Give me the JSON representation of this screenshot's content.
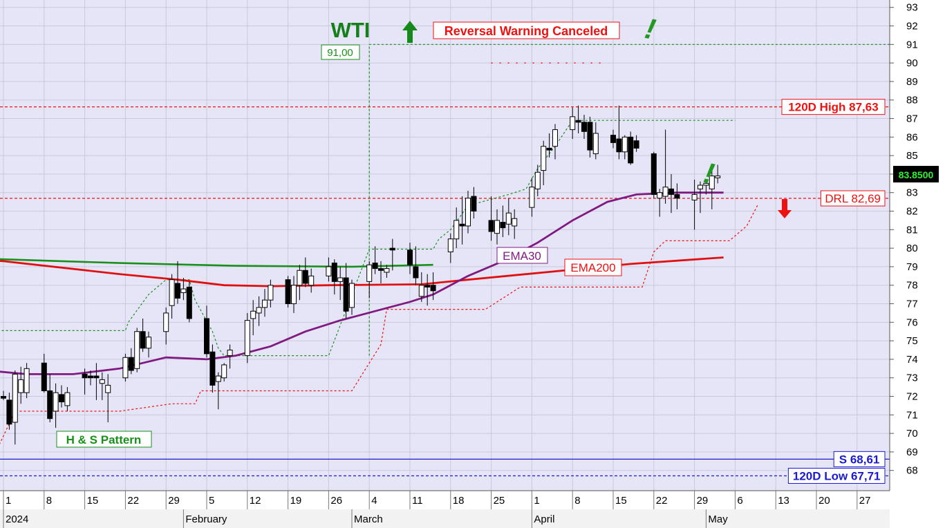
{
  "chart_data": {
    "type": "candlestick",
    "title": "WTI",
    "ylim": [
      67.2,
      93.4
    ],
    "y_ticks": [
      68,
      69,
      70,
      71,
      72,
      73,
      74,
      75,
      76,
      77,
      78,
      79,
      80,
      81,
      82,
      83,
      84,
      85,
      86,
      87,
      88,
      89,
      90,
      91,
      92,
      93
    ],
    "x_ticks": [
      {
        "label": "1",
        "day": 0
      },
      {
        "label": "8",
        "day": 7
      },
      {
        "label": "15",
        "day": 14
      },
      {
        "label": "22",
        "day": 21
      },
      {
        "label": "29",
        "day": 28
      },
      {
        "label": "5",
        "day": 35
      },
      {
        "label": "12",
        "day": 42
      },
      {
        "label": "19",
        "day": 49
      },
      {
        "label": "26",
        "day": 56
      },
      {
        "label": "4",
        "day": 63
      },
      {
        "label": "11",
        "day": 70
      },
      {
        "label": "18",
        "day": 77
      },
      {
        "label": "25",
        "day": 84
      },
      {
        "label": "1",
        "day": 91
      },
      {
        "label": "8",
        "day": 98
      },
      {
        "label": "15",
        "day": 105
      },
      {
        "label": "22",
        "day": 112
      },
      {
        "label": "29",
        "day": 119
      },
      {
        "label": "6",
        "day": 126
      },
      {
        "label": "13",
        "day": 133
      },
      {
        "label": "20",
        "day": 140
      },
      {
        "label": "27",
        "day": 147
      }
    ],
    "months": [
      {
        "label": "2024",
        "day": 0
      },
      {
        "label": "February",
        "day": 31
      },
      {
        "label": "March",
        "day": 60
      },
      {
        "label": "April",
        "day": 91
      },
      {
        "label": "May",
        "day": 121
      }
    ],
    "current_price": "83.8500",
    "candles": [
      [
        0,
        72,
        72.3,
        71.8,
        71.9
      ],
      [
        1,
        71.8,
        72.2,
        70.2,
        70.5
      ],
      [
        2,
        70.6,
        73.4,
        69.4,
        73.2
      ],
      [
        3,
        72.2,
        73.6,
        71.6,
        72.9
      ],
      [
        4,
        72.2,
        73.8,
        71.9,
        73.5
      ],
      [
        7,
        73.8,
        74.3,
        72.2,
        72.3
      ],
      [
        8,
        72.3,
        73.2,
        70.6,
        70.8
      ],
      [
        9,
        71.2,
        72.7,
        70.3,
        72.2
      ],
      [
        10,
        72.1,
        72.6,
        71.4,
        71.7
      ],
      [
        11,
        71.5,
        72.5,
        71.2,
        72.2
      ],
      [
        14,
        73.2,
        73.5,
        72.1,
        73
      ],
      [
        15,
        73.1,
        73.4,
        72.6,
        73
      ],
      [
        16,
        73.1,
        73.8,
        71.8,
        73
      ],
      [
        17,
        72.7,
        73.3,
        71.8,
        72.9
      ],
      [
        18,
        72.2,
        73.2,
        70.6,
        72.6
      ],
      [
        21,
        73,
        74.3,
        72.8,
        74.1
      ],
      [
        22,
        74.1,
        74.6,
        73.2,
        73.4
      ],
      [
        23,
        73.5,
        75.7,
        73.3,
        75.5
      ],
      [
        24,
        75.5,
        76.2,
        74.4,
        74.6
      ],
      [
        25,
        74.6,
        75.5,
        74.1,
        75.2
      ],
      [
        28,
        75.5,
        76.8,
        74.8,
        76.5
      ],
      [
        29,
        76.9,
        78.6,
        76.2,
        78.3
      ],
      [
        30,
        78.1,
        79.3,
        77,
        77.3
      ],
      [
        31,
        77.6,
        78.4,
        77.2,
        77.8
      ],
      [
        32,
        77.9,
        78.2,
        76,
        76.2
      ],
      [
        35,
        76.2,
        76.9,
        74.1,
        74.3
      ],
      [
        36,
        74.4,
        74.8,
        72.2,
        72.6
      ],
      [
        37,
        72.8,
        73.3,
        71.3,
        73.1
      ],
      [
        38,
        73,
        73.8,
        72.8,
        73.7
      ],
      [
        39,
        74.2,
        74.8,
        73.5,
        74.5
      ],
      [
        42,
        74.2,
        76.5,
        73.8,
        76.1
      ],
      [
        43,
        76.2,
        77.2,
        75.3,
        76.6
      ],
      [
        44,
        76.5,
        77.4,
        75.8,
        76.8
      ],
      [
        45,
        76.8,
        77.8,
        76.3,
        77.2
      ],
      [
        46,
        77.2,
        78.3,
        76.8,
        78
      ],
      [
        49,
        78.3,
        78.5,
        76.8,
        77
      ],
      [
        50,
        77,
        78.5,
        76.5,
        78
      ],
      [
        51,
        78,
        79.1,
        77.2,
        78.8
      ],
      [
        52,
        78.8,
        79.5,
        77.9,
        78.1
      ],
      [
        53,
        78,
        78.9,
        77.6,
        78.5
      ],
      [
        56,
        78.5,
        79.5,
        78.2,
        79
      ],
      [
        57,
        79.2,
        79.4,
        77.5,
        78.2
      ],
      [
        58,
        78.2,
        79,
        77.2,
        78.4
      ],
      [
        59,
        78.4,
        79.2,
        76.2,
        76.6
      ],
      [
        60,
        76.8,
        78.3,
        76.4,
        78.1
      ],
      [
        63,
        78.2,
        79.3,
        77.3,
        79.1
      ],
      [
        64,
        79.2,
        80.1,
        78.6,
        78.9
      ],
      [
        65,
        78.9,
        79.3,
        78.1,
        78.8
      ],
      [
        66,
        78.7,
        79.1,
        78.4,
        78.9
      ],
      [
        67,
        80,
        80.5,
        78.8,
        79.9
      ],
      [
        70,
        79.9,
        80.3,
        78.6,
        79.1
      ],
      [
        71,
        79,
        80.1,
        78,
        78.4
      ],
      [
        72,
        77.4,
        78.7,
        77.1,
        78
      ],
      [
        73,
        78,
        78.6,
        76.9,
        77.9
      ],
      [
        74,
        78,
        78.7,
        77.2,
        77.7
      ],
      [
        77,
        79.8,
        80.8,
        79.2,
        80.5
      ],
      [
        78,
        80.5,
        82.2,
        80,
        81.5
      ],
      [
        79,
        81.3,
        82.8,
        80.2,
        81.2
      ],
      [
        80,
        81.2,
        83.1,
        80.8,
        82.7
      ],
      [
        81,
        82.8,
        83.3,
        81.6,
        82
      ],
      [
        84,
        81.5,
        82.8,
        80.4,
        80.9
      ],
      [
        85,
        80.8,
        82.1,
        80.2,
        81.5
      ],
      [
        86,
        81.4,
        82.3,
        80.6,
        81.1
      ],
      [
        87,
        81.3,
        82.7,
        80.7,
        81.9
      ],
      [
        88,
        81.2,
        82.1,
        80.5,
        81.6
      ],
      [
        91,
        82.2,
        83.8,
        81.7,
        83.3
      ],
      [
        92,
        83.2,
        84.5,
        82.8,
        84.1
      ],
      [
        93,
        84.2,
        85.8,
        83.4,
        85.5
      ],
      [
        94,
        85.4,
        86.2,
        84.9,
        85.3
      ],
      [
        95,
        85.5,
        86.7,
        84.8,
        86.4
      ],
      [
        98,
        86.4,
        87.6,
        85.9,
        87.1
      ],
      [
        99,
        86.9,
        87.7,
        86.2,
        86.8
      ],
      [
        100,
        86.8,
        87.2,
        85.9,
        86.3
      ],
      [
        101,
        86.8,
        87.1,
        84.9,
        85.3
      ],
      [
        102,
        85.1,
        86.8,
        84.8,
        86.2
      ],
      [
        105,
        86.1,
        86.4,
        85.4,
        85.7
      ],
      [
        106,
        85.9,
        87.7,
        84.8,
        85.2
      ],
      [
        107,
        85.2,
        86.1,
        84.8,
        86
      ],
      [
        108,
        86,
        86.3,
        84.5,
        84.6
      ],
      [
        109,
        85.8,
        86.1,
        85.2,
        85.4
      ],
      [
        112,
        85.1,
        85.2,
        82.7,
        82.9
      ],
      [
        113,
        82.7,
        83.2,
        81.7,
        83
      ],
      [
        114,
        82.8,
        86.4,
        82.4,
        83.3
      ],
      [
        115,
        83.2,
        84,
        81.9,
        82.9
      ],
      [
        116,
        82.9,
        83.5,
        82.1,
        82.7
      ],
      [
        119,
        82.6,
        83.7,
        81,
        82.9
      ],
      [
        120,
        83.2,
        83.6,
        81.9,
        83.4
      ],
      [
        121,
        83.4,
        83.7,
        82.9,
        83.5
      ],
      [
        122,
        83.2,
        84.2,
        82.1,
        83.9
      ],
      [
        123,
        83.8,
        84.5,
        83.5,
        83.9
      ]
    ],
    "ema200": [
      [
        -16,
        79.55
      ],
      [
        0,
        79.3
      ],
      [
        20,
        78.6
      ],
      [
        30,
        78.3
      ],
      [
        38,
        78
      ],
      [
        46,
        77.95
      ],
      [
        56,
        78
      ],
      [
        72,
        78.05
      ],
      [
        80,
        78.3
      ],
      [
        95,
        78.75
      ],
      [
        108,
        79.15
      ],
      [
        124,
        79.5
      ]
    ],
    "ema30": [
      [
        -16,
        74
      ],
      [
        -8,
        73.55
      ],
      [
        4,
        73.2
      ],
      [
        12,
        73.2
      ],
      [
        20,
        73.5
      ],
      [
        28,
        74.1
      ],
      [
        35,
        74
      ],
      [
        40,
        74.2
      ],
      [
        46,
        74.7
      ],
      [
        52,
        75.5
      ],
      [
        58,
        76.1
      ],
      [
        64,
        76.6
      ],
      [
        70,
        77.1
      ],
      [
        74,
        77.5
      ],
      [
        80,
        78.5
      ],
      [
        86,
        79.3
      ],
      [
        92,
        80.3
      ],
      [
        98,
        81.5
      ],
      [
        104,
        82.5
      ],
      [
        109,
        82.9
      ],
      [
        116,
        83
      ],
      [
        124,
        83
      ]
    ],
    "green_line": [
      [
        -16,
        79.55
      ],
      [
        0,
        79.4
      ],
      [
        20,
        79.2
      ],
      [
        40,
        79.05
      ],
      [
        60,
        79
      ],
      [
        74,
        79.1
      ]
    ],
    "trailing_stop": [
      [
        -16,
        75.55
      ],
      [
        0,
        75.55
      ],
      [
        21,
        75.55
      ],
      [
        21.5,
        76
      ],
      [
        25,
        77.5
      ],
      [
        28,
        78.3
      ],
      [
        32,
        78.3
      ],
      [
        33,
        77.2
      ],
      [
        36,
        75.5
      ],
      [
        37,
        74.6
      ],
      [
        38,
        74.2
      ],
      [
        44,
        74.2
      ],
      [
        50,
        74.2
      ],
      [
        56,
        74.2
      ],
      [
        63,
        79.95
      ],
      [
        74,
        79.95
      ],
      [
        75,
        80.5
      ],
      [
        77,
        81
      ],
      [
        80,
        82.3
      ],
      [
        87,
        82.9
      ],
      [
        90,
        83.2
      ],
      [
        92,
        84.3
      ],
      [
        95,
        85.5
      ],
      [
        98,
        86.9
      ],
      [
        104,
        86.9
      ],
      [
        120,
        86.9
      ],
      [
        126,
        86.9
      ]
    ],
    "lower_stop": [
      [
        -2,
        68.6
      ],
      [
        -1,
        69.2
      ],
      [
        2,
        71.2
      ],
      [
        20,
        71.2
      ],
      [
        29,
        71.6
      ],
      [
        33,
        71.6
      ],
      [
        34,
        72.3
      ],
      [
        52,
        72.3
      ],
      [
        60,
        72.3
      ],
      [
        65,
        74.8
      ],
      [
        66,
        76.7
      ],
      [
        71,
        76.7
      ],
      [
        83,
        76.7
      ],
      [
        89,
        77.9
      ],
      [
        98,
        77.9
      ],
      [
        110,
        77.9
      ],
      [
        112,
        79.8
      ],
      [
        114,
        80.4
      ],
      [
        125,
        80.4
      ],
      [
        128,
        81.2
      ],
      [
        130,
        82.4
      ]
    ],
    "reversal_dots": [
      [
        84,
        90
      ],
      [
        104,
        90
      ]
    ],
    "h_and_s_top_dots": [
      [
        63,
        93.2
      ]
    ],
    "level_lines": [
      {
        "label": "120D High 87,63",
        "value": 87.63,
        "color": "#ee1111"
      },
      {
        "label": "DRL 82,69",
        "value": 82.69,
        "color": "#ee1111"
      },
      {
        "label": "S 68,61",
        "value": 68.61,
        "color": "#1a1ad0"
      },
      {
        "label": "120D Low 67,71",
        "value": 67.71,
        "color": "#1a1ad0"
      }
    ],
    "annotations": {
      "target_label": "91,00",
      "reversal_label": "Reversal Warning Canceled",
      "pattern_label": "H & S Pattern",
      "ema30_label": "EMA30",
      "ema200_label": "EMA200",
      "exclaim": "!"
    },
    "colors": {
      "plot_bg": "#e5e5f7",
      "ema200": "#e01010",
      "ema30": "#801a80",
      "green": "#18901a",
      "up_body": "#ffffff",
      "down_body": "#000000"
    }
  }
}
